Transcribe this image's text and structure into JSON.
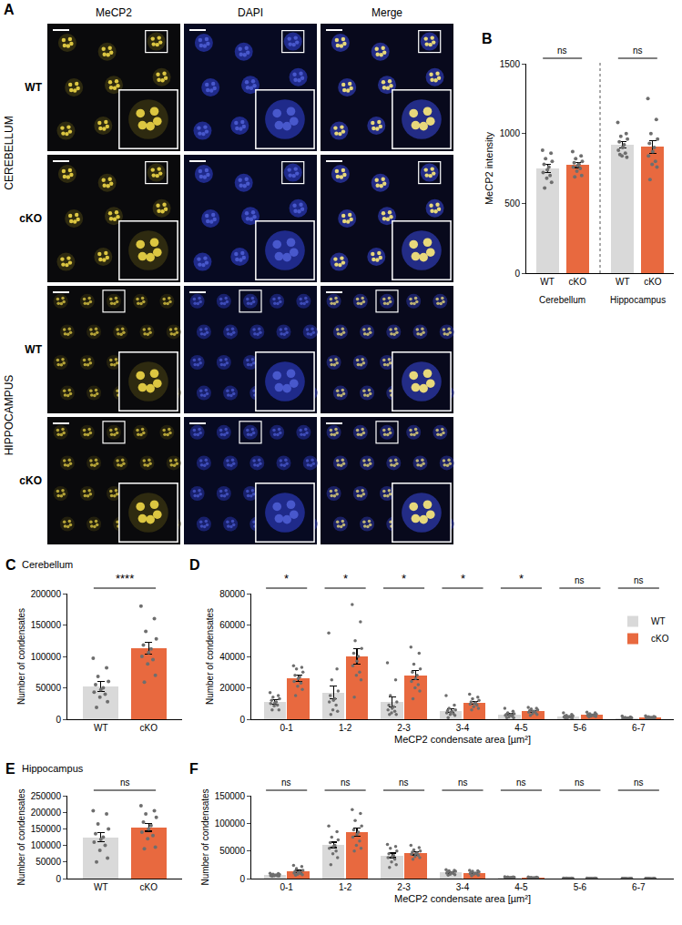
{
  "image_panel": {
    "label": "A",
    "columns": [
      "MeCP2",
      "DAPI",
      "Merge"
    ],
    "regions": [
      {
        "name": "CEREBELLUM",
        "rows": [
          "WT",
          "cKO"
        ]
      },
      {
        "name": "HIPPOCAMPUS",
        "rows": [
          "WT",
          "cKO"
        ]
      }
    ]
  },
  "chart_data": [
    {
      "panel": "B",
      "type": "bar",
      "y_label": "MeCP2 intensity",
      "categories": [
        "WT",
        "cKO",
        "WT",
        "cKO"
      ],
      "group_labels": [
        "Cerebellum",
        "Hippocampus"
      ],
      "values": [
        750,
        775,
        920,
        905
      ],
      "errors": [
        30,
        18,
        22,
        45
      ],
      "colors": [
        "#d9d9d9",
        "#e8693f",
        "#d9d9d9",
        "#e8693f"
      ],
      "points": [
        [
          880,
          860,
          820,
          800,
          780,
          760,
          740,
          720,
          700,
          680,
          650,
          610
        ],
        [
          870,
          840,
          820,
          800,
          790,
          780,
          770,
          760,
          750,
          730,
          700,
          690
        ],
        [
          1080,
          1000,
          980,
          960,
          940,
          920,
          900,
          880,
          860,
          840,
          830,
          850
        ],
        [
          1250,
          1100,
          1000,
          960,
          930,
          900,
          870,
          840,
          800,
          780,
          760,
          670
        ]
      ],
      "significance": [
        "ns",
        "ns"
      ],
      "ylim": [
        0,
        1500
      ],
      "yticks": [
        0,
        500,
        1000,
        1500
      ],
      "grid": false
    },
    {
      "panel": "C",
      "type": "bar",
      "title": "Cerebellum",
      "y_label": "Number of condensates",
      "categories": [
        "WT",
        "cKO"
      ],
      "values": [
        52000,
        113000
      ],
      "errors": [
        8000,
        9000
      ],
      "colors": [
        "#d9d9d9",
        "#e8693f"
      ],
      "points": [
        [
          97000,
          82000,
          68000,
          60000,
          55000,
          50000,
          47000,
          43000,
          40000,
          35000,
          28000,
          19000
        ],
        [
          180000,
          160000,
          140000,
          128000,
          118000,
          112000,
          106000,
          100000,
          95000,
          88000,
          70000,
          59000
        ]
      ],
      "significance": [
        "****"
      ],
      "ylim": [
        0,
        200000
      ],
      "yticks": [
        0,
        50000,
        100000,
        150000,
        200000
      ],
      "grid": false
    },
    {
      "panel": "D",
      "type": "bar",
      "x_label": "MeCP2 condensate area [µm²]",
      "y_label": "Number of condensates",
      "categories": [
        "0-1",
        "1-2",
        "2-3",
        "3-4",
        "4-5",
        "5-6",
        "6-7"
      ],
      "series": [
        {
          "name": "WT",
          "color": "#d9d9d9",
          "values": [
            11000,
            17000,
            11000,
            5500,
            3000,
            1800,
            800
          ],
          "errors": [
            1500,
            4000,
            3000,
            1000,
            500,
            300,
            150
          ],
          "points": [
            [
              17000,
              15000,
              14000,
              13000,
              12000,
              11000,
              10500,
              10000,
              9000,
              8500,
              6000,
              6000
            ],
            [
              55000,
              32000,
              25000,
              18000,
              15000,
              13000,
              12000,
              11000,
              9000,
              6000,
              5000,
              3000
            ],
            [
              36000,
              25000,
              15000,
              11000,
              9000,
              8000,
              7000,
              6000,
              5000,
              4000,
              3000,
              3000
            ],
            [
              15000,
              9000,
              7000,
              6000,
              5500,
              5000,
              4500,
              4000,
              3500,
              3000,
              2500,
              1000
            ],
            [
              7000,
              5000,
              4000,
              3500,
              3000,
              3000,
              2500,
              2500,
              2000,
              1500,
              1000,
              1000
            ],
            [
              4000,
              3000,
              2500,
              2200,
              2000,
              1800,
              1600,
              1500,
              1200,
              1000,
              800,
              600
            ],
            [
              2000,
              1500,
              1200,
              1000,
              900,
              800,
              700,
              600,
              500,
              400,
              300,
              200
            ]
          ]
        },
        {
          "name": "cKO",
          "color": "#e8693f",
          "values": [
            26000,
            40000,
            28000,
            10500,
            5000,
            2800,
            1200
          ],
          "errors": [
            2000,
            5000,
            3000,
            1000,
            500,
            300,
            150
          ],
          "points": [
            [
              34000,
              33000,
              32000,
              30000,
              28000,
              27000,
              26000,
              24000,
              23000,
              21000,
              19000,
              15000
            ],
            [
              73000,
              62000,
              50000,
              45000,
              42000,
              40000,
              37000,
              34000,
              30000,
              28000,
              25000,
              14000
            ],
            [
              46000,
              42000,
              35000,
              32000,
              30000,
              28000,
              26000,
              24000,
              22000,
              20000,
              18000,
              13000
            ],
            [
              16000,
              14000,
              13000,
              12000,
              11000,
              10500,
              10000,
              9500,
              9000,
              8000,
              7000,
              6000
            ],
            [
              7500,
              7000,
              6500,
              6000,
              5500,
              5000,
              5000,
              4500,
              4000,
              3500,
              3000,
              2500
            ],
            [
              4500,
              4000,
              3500,
              3200,
              3000,
              2800,
              2600,
              2400,
              2200,
              2000,
              1800,
              1500
            ],
            [
              2200,
              1800,
              1600,
              1400,
              1300,
              1200,
              1100,
              1000,
              900,
              800,
              600,
              500
            ]
          ]
        }
      ],
      "significance": [
        "*",
        "*",
        "*",
        "*",
        "*",
        "ns",
        "ns"
      ],
      "ylim": [
        0,
        80000
      ],
      "yticks": [
        0,
        20000,
        40000,
        60000,
        80000
      ],
      "legend": "right",
      "grid": false
    },
    {
      "panel": "E",
      "type": "bar",
      "title": "Hippocampus",
      "y_label": "Number of condensates",
      "categories": [
        "WT",
        "cKO"
      ],
      "values": [
        125000,
        155000
      ],
      "errors": [
        13000,
        12000
      ],
      "colors": [
        "#d9d9d9",
        "#e8693f"
      ],
      "points": [
        [
          205000,
          195000,
          165000,
          150000,
          135000,
          125000,
          118000,
          110000,
          100000,
          85000,
          62000,
          50000
        ],
        [
          220000,
          205000,
          195000,
          185000,
          170000,
          160000,
          150000,
          140000,
          130000,
          120000,
          95000,
          90000
        ]
      ],
      "significance": [
        "ns"
      ],
      "ylim": [
        0,
        250000
      ],
      "yticks": [
        0,
        50000,
        100000,
        150000,
        200000,
        250000
      ],
      "grid": false
    },
    {
      "panel": "F",
      "type": "bar",
      "x_label": "MeCP2 condensate area [µm²]",
      "y_label": "Number of condensates",
      "categories": [
        "0-1",
        "1-2",
        "2-3",
        "3-4",
        "4-5",
        "5-6",
        "6-7"
      ],
      "series": [
        {
          "name": "WT",
          "color": "#d9d9d9",
          "values": [
            6500,
            61000,
            42000,
            11000,
            2000,
            500,
            200
          ],
          "errors": [
            800,
            5000,
            4000,
            1200,
            200,
            50,
            30
          ],
          "points": [
            [
              9500,
              9000,
              8000,
              7500,
              7000,
              6500,
              6000,
              5500,
              5000,
              5000,
              4500,
              4000
            ],
            [
              95000,
              85000,
              75000,
              70000,
              65000,
              60000,
              58000,
              55000,
              50000,
              45000,
              38000,
              25000
            ],
            [
              62000,
              58000,
              55000,
              50000,
              45000,
              42000,
              40000,
              38000,
              35000,
              30000,
              25000,
              20000
            ],
            [
              16000,
              15000,
              14000,
              13000,
              12000,
              11000,
              10500,
              10000,
              9000,
              8000,
              7000,
              6000
            ],
            [
              3500,
              3000,
              2800,
              2500,
              2200,
              2000,
              1800,
              1600,
              1500,
              1200,
              1000,
              800
            ],
            [
              900,
              800,
              700,
              600,
              550,
              500,
              450,
              400,
              350,
              300,
              250,
              200
            ],
            [
              400,
              350,
              300,
              250,
              200,
              200,
              180,
              150,
              120,
              100,
              80,
              50
            ]
          ]
        },
        {
          "name": "cKO",
          "color": "#e8693f",
          "values": [
            13000,
            84000,
            46000,
            10000,
            1500,
            400,
            150
          ],
          "errors": [
            2000,
            8000,
            3000,
            1000,
            200,
            50,
            30
          ],
          "points": [
            [
              24000,
              22000,
              18000,
              15000,
              13000,
              12000,
              11000,
              10000,
              9000,
              8000,
              7000,
              6000
            ],
            [
              125000,
              118000,
              105000,
              95000,
              88000,
              84000,
              80000,
              75000,
              68000,
              60000,
              55000,
              50000
            ],
            [
              60000,
              56000,
              52000,
              50000,
              48000,
              46000,
              45000,
              44000,
              42000,
              40000,
              38000,
              35000
            ],
            [
              15000,
              14000,
              13000,
              12000,
              11000,
              10000,
              9500,
              9000,
              8500,
              8000,
              6000,
              5000
            ],
            [
              2800,
              2500,
              2200,
              1800,
              1600,
              1500,
              1400,
              1200,
              1000,
              900,
              700,
              500
            ],
            [
              700,
              650,
              600,
              500,
              450,
              400,
              350,
              300,
              300,
              250,
              200,
              150
            ],
            [
              300,
              250,
              220,
              200,
              160,
              150,
              130,
              120,
              100,
              80,
              60,
              40
            ]
          ]
        }
      ],
      "significance": [
        "ns",
        "ns",
        "ns",
        "ns",
        "ns",
        "ns",
        "ns"
      ],
      "ylim": [
        0,
        150000
      ],
      "yticks": [
        0,
        50000,
        100000,
        150000
      ],
      "grid": false
    }
  ]
}
